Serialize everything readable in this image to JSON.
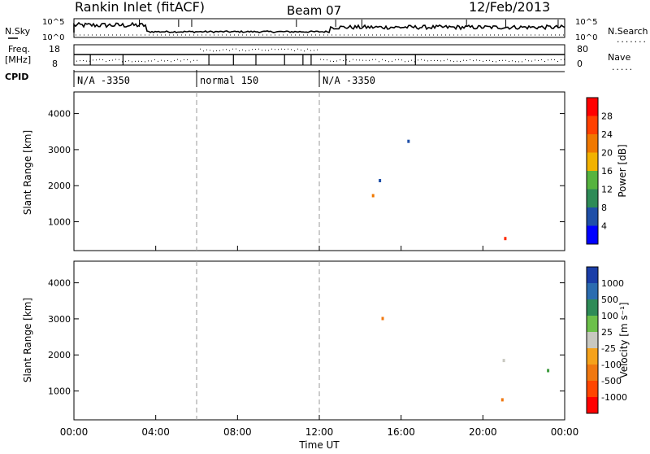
{
  "header": {
    "radar": "Rankin Inlet (fitACF)",
    "beam": "Beam 07",
    "date": "12/Feb/2013"
  },
  "chart_data": [
    {
      "type": "line",
      "panel": "noise",
      "left_label": "N.Sky",
      "right_label": "N.Search",
      "yticks_left": [
        "10^5",
        "10^0"
      ],
      "yticks_right": [
        "10^5",
        "10^0"
      ],
      "x_hours": [
        0,
        4,
        8,
        12,
        16,
        20,
        24
      ]
    },
    {
      "type": "line",
      "panel": "frequency-nave",
      "left_label_1": "Freq.",
      "left_label_2": "[MHz]",
      "right_label": "Nave",
      "yticks_left": [
        18,
        8
      ],
      "yticks_right": [
        80,
        0
      ]
    },
    {
      "type": "table",
      "panel": "cpid",
      "label": "CPID",
      "segments": [
        {
          "text": "N/A -3350",
          "start_hour": 0
        },
        {
          "text": "normal 150",
          "start_hour": 6
        },
        {
          "text": "N/A -3350",
          "start_hour": 12
        }
      ]
    },
    {
      "type": "heatmap",
      "panel": "power",
      "ylabel": "Slant Range [km]",
      "ylim": [
        200,
        4600
      ],
      "yticks": [
        1000,
        2000,
        3000,
        4000
      ],
      "colorbar_label": "Power [dB]",
      "colorbar_ticks": [
        4,
        8,
        12,
        16,
        20,
        24,
        28
      ],
      "colorbar_colors": [
        "#0000ff",
        "#1f4fa8",
        "#2e8b57",
        "#56b33f",
        "#f2b200",
        "#f07800",
        "#ff4000",
        "#ff0000"
      ]
    },
    {
      "type": "heatmap",
      "panel": "velocity",
      "ylabel": "Slant Range [km]",
      "ylim": [
        200,
        4600
      ],
      "yticks": [
        1000,
        2000,
        3000,
        4000
      ],
      "xlabel": "Time UT",
      "xticks": [
        "00:00",
        "04:00",
        "08:00",
        "12:00",
        "16:00",
        "20:00",
        "00:00"
      ],
      "x_hours": [
        0,
        4,
        8,
        12,
        16,
        20,
        24
      ],
      "colorbar_label": "Velocity [m s⁻¹]",
      "colorbar_ticks": [
        "1000",
        "500",
        "100",
        "25",
        "-25",
        "-100",
        "-500",
        "-1000"
      ],
      "colorbar_colors": [
        "#1a3ea8",
        "#2b6cb0",
        "#2e8b57",
        "#6cc04a",
        "#c8c8c0",
        "#f5a21b",
        "#f07810",
        "#ff4500",
        "#ff0000"
      ]
    }
  ],
  "colors": {
    "power_strong": "#ff2a00",
    "power_mid": "#f07800",
    "power_weak": "#3a8f4a",
    "power_low": "#1f4fa8",
    "vel_pos": "#3c9a3c",
    "vel_neg": "#f07810",
    "vel_zero": "#c8c8c0",
    "vel_far": "#1a3ea8"
  },
  "axis_titles": {
    "time": "Time UT"
  }
}
